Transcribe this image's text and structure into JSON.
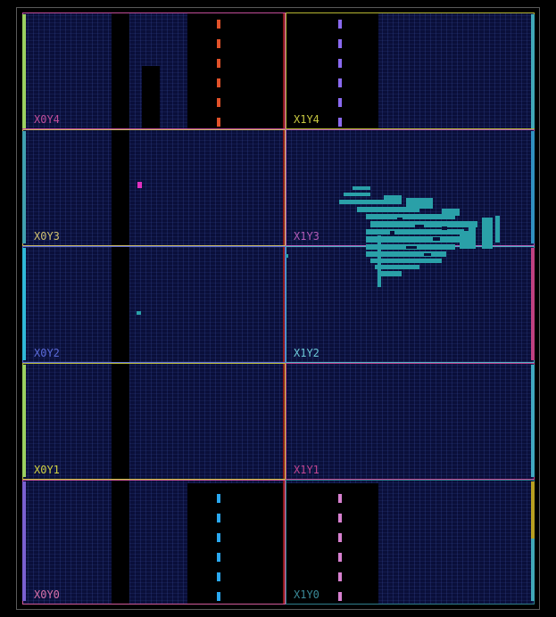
{
  "regions": [
    {
      "label": "X0Y4",
      "color": "#c14d9a"
    },
    {
      "label": "X1Y4",
      "color": "#b6b632"
    },
    {
      "label": "X0Y3",
      "color": "#c8b560"
    },
    {
      "label": "X1Y3",
      "color": "#b35bb6"
    },
    {
      "label": "X0Y2",
      "color": "#5a6ad8"
    },
    {
      "label": "X1Y2",
      "color": "#4bb0c2"
    },
    {
      "label": "X0Y1",
      "color": "#c0c23a"
    },
    {
      "label": "X1Y1",
      "color": "#c0448f"
    },
    {
      "label": "X0Y0",
      "color": "#d05a9a"
    },
    {
      "label": "X1Y0",
      "color": "#2f7f8c"
    }
  ],
  "colors": {
    "background": "#000000",
    "fabric": "#0a0f3a",
    "placed_logic": "#2aa0a8",
    "clock_dash_x0y4": "#e0522a",
    "clock_dash_x1y4": "#8a6af0",
    "clock_dash_x0y0": "#2aa8f0",
    "clock_dash_x1y0": "#d880d0"
  }
}
